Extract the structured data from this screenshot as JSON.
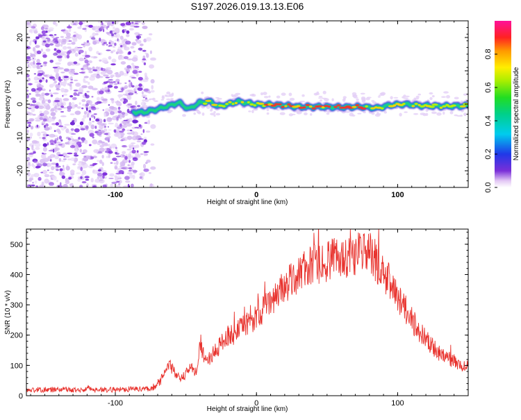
{
  "title": "S197.2026.019.13.13.E06",
  "chart_data": [
    {
      "type": "heatmap",
      "name": "spectrogram",
      "xlabel": "Height of straight line (km)",
      "ylabel": "Frequency (Hz)",
      "xlim": [
        -163,
        150
      ],
      "ylim": [
        -25,
        25
      ],
      "x_ticks": [
        -100,
        0,
        100
      ],
      "x_tick_labels": [
        "-100",
        "0",
        "100"
      ],
      "y_ticks": [
        -20,
        -10,
        0,
        10,
        20
      ],
      "y_tick_labels": [
        "-20",
        "-10",
        "0",
        "10",
        "20"
      ],
      "noise_region_x": [
        -163,
        -73
      ],
      "signal_track": [
        {
          "x": -87,
          "f": -2.4,
          "a": 0.25
        },
        {
          "x": -80,
          "f": -2.5,
          "a": 0.3
        },
        {
          "x": -70,
          "f": -1.5,
          "a": 0.35
        },
        {
          "x": -62,
          "f": -0.5,
          "a": 0.4
        },
        {
          "x": -55,
          "f": 0.5,
          "a": 0.45
        },
        {
          "x": -48,
          "f": -1.5,
          "a": 0.45
        },
        {
          "x": -40,
          "f": 0.5,
          "a": 0.55
        },
        {
          "x": -33,
          "f": 0.8,
          "a": 0.65
        },
        {
          "x": -27,
          "f": -0.7,
          "a": 0.72
        },
        {
          "x": -20,
          "f": 0.0,
          "a": 0.7
        },
        {
          "x": -13,
          "f": 0.8,
          "a": 0.75
        },
        {
          "x": -6,
          "f": 0.3,
          "a": 0.8
        },
        {
          "x": 0,
          "f": -0.1,
          "a": 0.85
        },
        {
          "x": 10,
          "f": -0.2,
          "a": 0.9
        },
        {
          "x": 20,
          "f": -0.4,
          "a": 0.9
        },
        {
          "x": 30,
          "f": -0.8,
          "a": 0.95
        },
        {
          "x": 45,
          "f": -0.8,
          "a": 0.95
        },
        {
          "x": 60,
          "f": -0.9,
          "a": 0.95
        },
        {
          "x": 75,
          "f": -0.8,
          "a": 0.95
        },
        {
          "x": 85,
          "f": -1.2,
          "a": 0.7
        },
        {
          "x": 95,
          "f": -0.3,
          "a": 0.75
        },
        {
          "x": 105,
          "f": 0.0,
          "a": 0.8
        },
        {
          "x": 115,
          "f": -0.4,
          "a": 0.75
        },
        {
          "x": 130,
          "f": -0.6,
          "a": 0.7
        },
        {
          "x": 150,
          "f": -0.5,
          "a": 0.65
        }
      ],
      "colorbar": {
        "label": "Normalized spectral amplitude",
        "range": [
          0.0,
          1.0
        ],
        "ticks": [
          0.0,
          0.2,
          0.4,
          0.6,
          0.8
        ],
        "tick_labels": [
          "0.0",
          "0.2",
          "0.4",
          "0.6",
          "0.8"
        ],
        "colormap": "rainbow (violet to magenta)"
      }
    },
    {
      "type": "line",
      "name": "snr",
      "xlabel": "Height of straight line (km)",
      "ylabel": "SNR (10 * v/v)",
      "xlim": [
        -163,
        150
      ],
      "ylim": [
        0,
        550
      ],
      "x_ticks": [
        -100,
        0,
        100
      ],
      "x_tick_labels": [
        "-100",
        "0",
        "100"
      ],
      "y_ticks": [
        0,
        100,
        200,
        300,
        400,
        500
      ],
      "y_tick_labels": [
        "0",
        "100",
        "200",
        "300",
        "400",
        "500"
      ],
      "line_color": "#e8312c",
      "series": [
        {
          "name": "SNR",
          "x": [
            -163,
            -150,
            -140,
            -130,
            -120,
            -110,
            -100,
            -90,
            -80,
            -73,
            -68,
            -65,
            -62,
            -58,
            -55,
            -52,
            -48,
            -45,
            -42,
            -40,
            -38,
            -35,
            -32,
            -28,
            -25,
            -20,
            -15,
            -10,
            -5,
            0,
            5,
            10,
            15,
            20,
            25,
            30,
            35,
            40,
            45,
            50,
            55,
            60,
            65,
            70,
            75,
            80,
            83,
            86,
            90,
            95,
            100,
            105,
            110,
            115,
            120,
            125,
            130,
            135,
            140,
            145,
            150
          ],
          "y": [
            18,
            20,
            20,
            19,
            21,
            20,
            20,
            22,
            22,
            25,
            50,
            70,
            105,
            80,
            50,
            60,
            95,
            85,
            75,
            190,
            140,
            115,
            130,
            150,
            175,
            200,
            205,
            225,
            240,
            265,
            285,
            310,
            340,
            360,
            380,
            405,
            420,
            430,
            435,
            445,
            450,
            455,
            460,
            470,
            475,
            470,
            455,
            430,
            400,
            370,
            330,
            290,
            250,
            215,
            185,
            160,
            140,
            125,
            112,
            102,
            95
          ]
        }
      ]
    }
  ]
}
